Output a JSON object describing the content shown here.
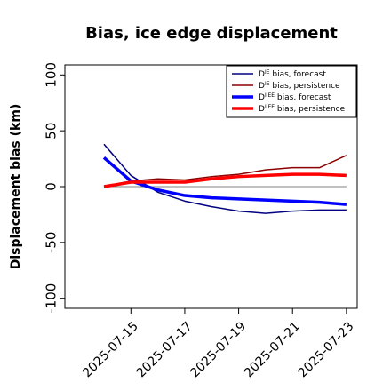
{
  "chart_data": {
    "type": "line",
    "title": "Bias, ice edge displacement",
    "y_label": "Displacement bias (km)",
    "x": [
      "2025-07-14",
      "2025-07-15",
      "2025-07-16",
      "2025-07-17",
      "2025-07-18",
      "2025-07-19",
      "2025-07-20",
      "2025-07-21",
      "2025-07-22",
      "2025-07-23"
    ],
    "xticks": [
      "2025-07-15",
      "2025-07-17",
      "2025-07-19",
      "2025-07-21",
      "2025-07-23"
    ],
    "xtick_label_colors": [
      "#228b22",
      "#000000",
      "#000000",
      "#000000",
      "#000000"
    ],
    "ylim": [
      -109,
      109
    ],
    "yticks": [
      -100,
      -50,
      0,
      50,
      100
    ],
    "reference_line": 0,
    "legend": "upper right",
    "series": [
      {
        "name": [
          "D",
          "IE",
          " bias, forecast"
        ],
        "color": "#000080",
        "width": 1.5,
        "values": [
          38,
          10,
          -5,
          -13,
          -18,
          -22,
          -24,
          -22,
          -21,
          -21
        ]
      },
      {
        "name": [
          "D",
          "IE",
          " bias, persistence"
        ],
        "color": "#8b0000",
        "width": 1.5,
        "values": [
          0,
          5,
          7,
          6,
          9,
          11,
          15,
          17,
          17,
          28
        ]
      },
      {
        "name": [
          "D",
          "IIEE",
          " bias, forecast"
        ],
        "color": "#0000ff",
        "width": 3.5,
        "values": [
          26,
          5,
          -3,
          -8,
          -10,
          -11,
          -12,
          -13,
          -14,
          -16
        ]
      },
      {
        "name": [
          "D",
          "IIEE",
          " bias, persistence"
        ],
        "color": "#ff0000",
        "width": 3.5,
        "values": [
          0,
          4,
          4,
          4,
          7,
          9,
          10,
          11,
          11,
          10
        ]
      }
    ]
  }
}
